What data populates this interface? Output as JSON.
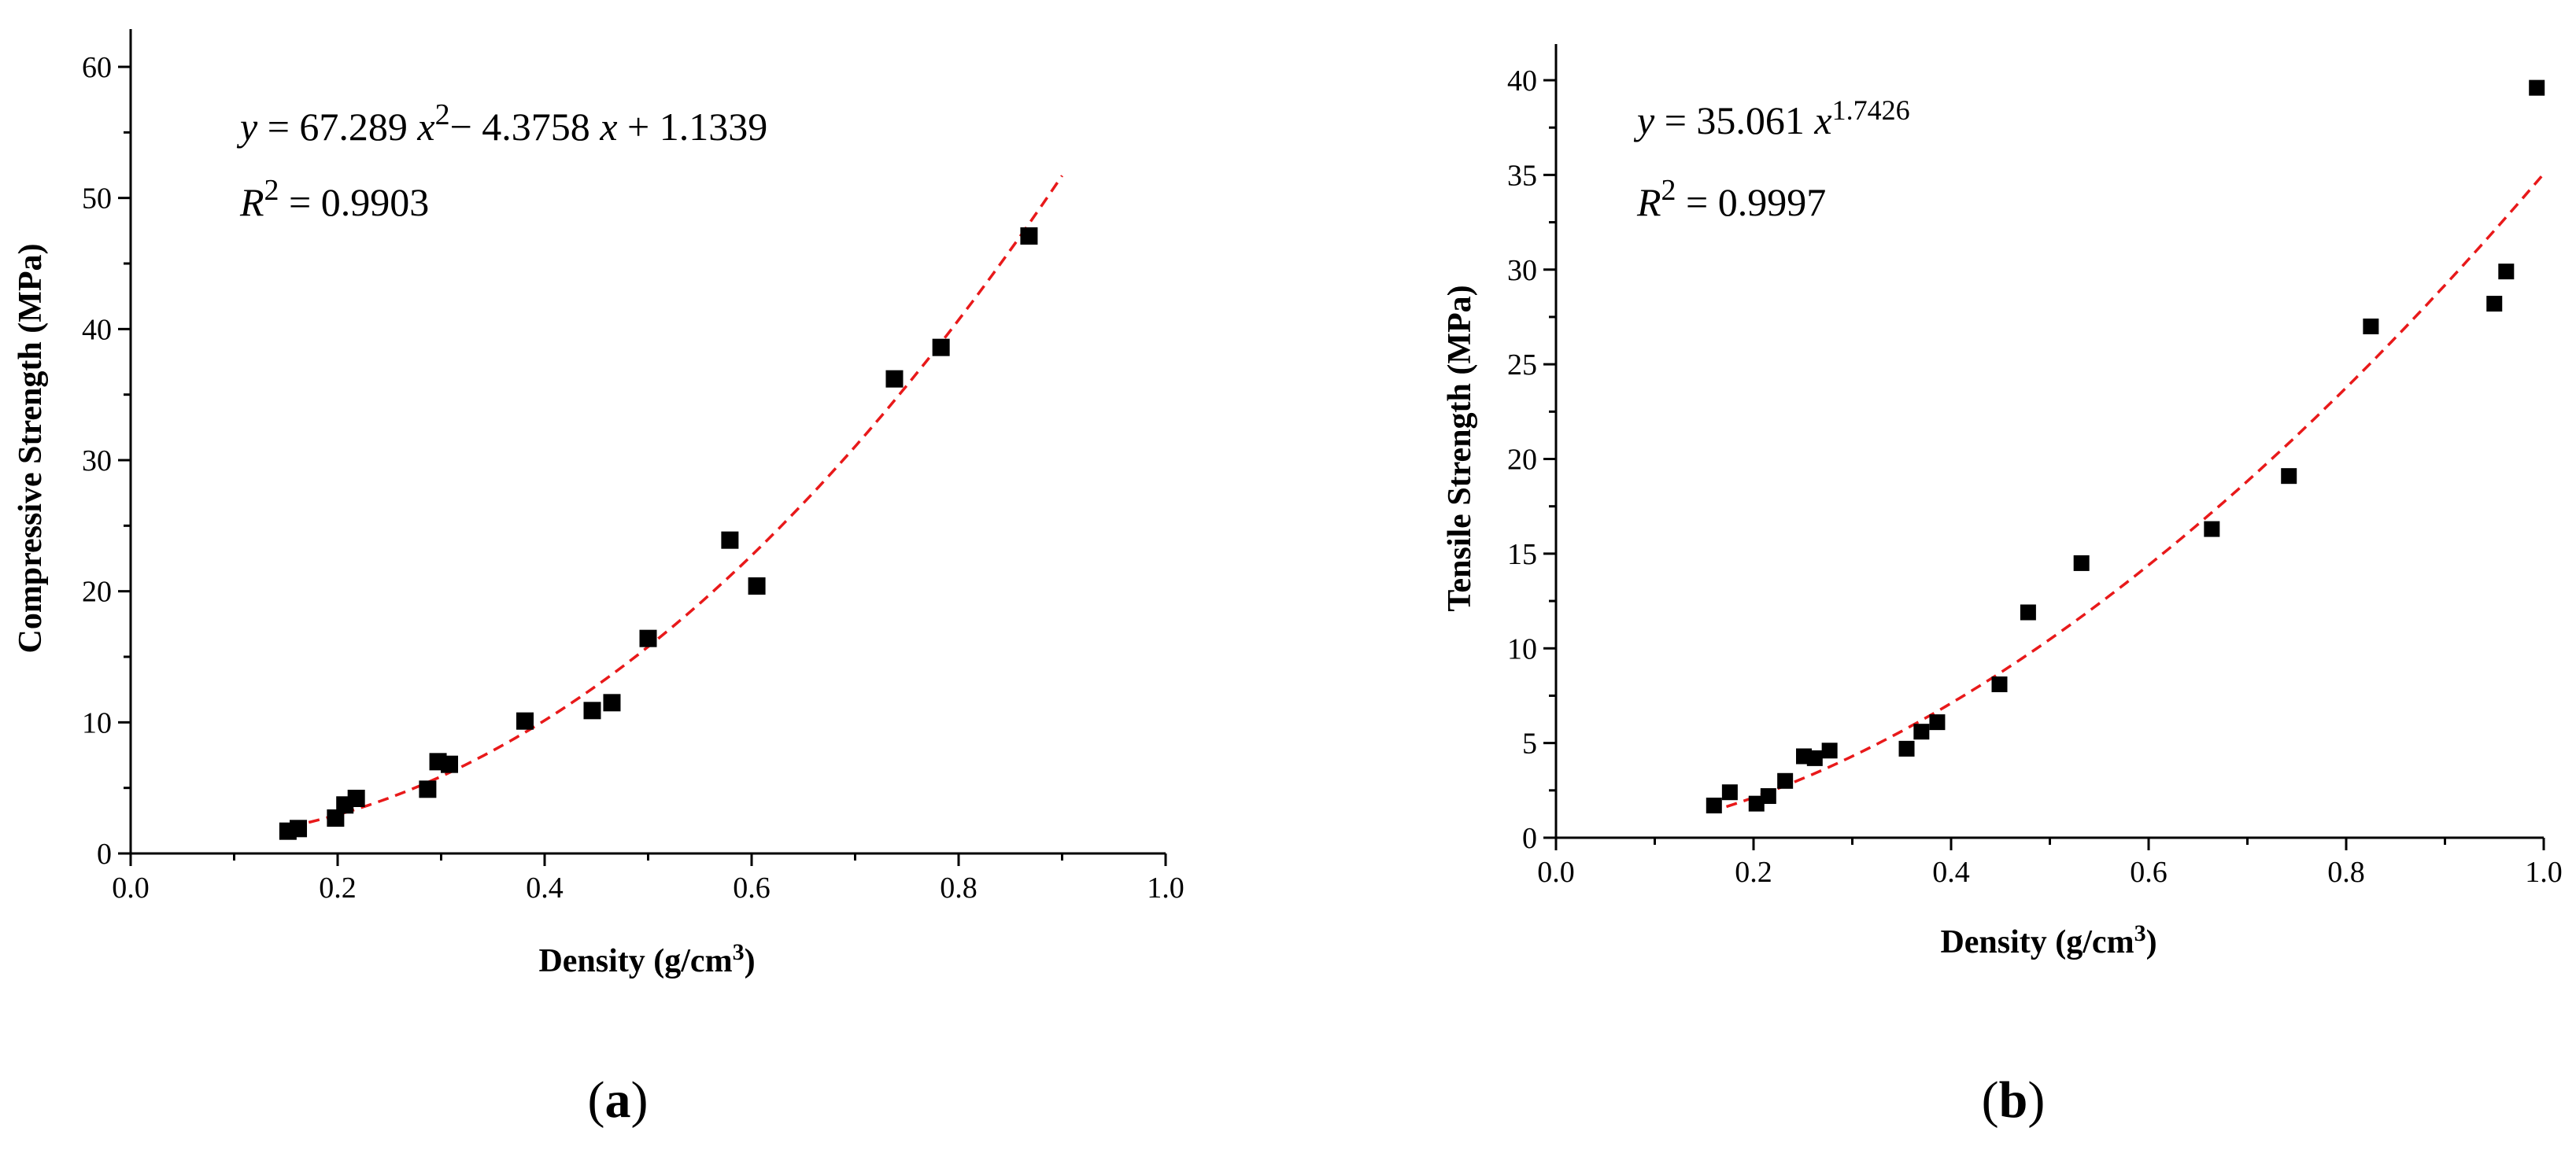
{
  "chart_data": [
    {
      "type": "scatter",
      "panel_label": {
        "open": "(",
        "letter": "a",
        "close": ")"
      },
      "xlabel": {
        "text": "Density (g/cm",
        "sup": "3",
        "suffix": ")"
      },
      "ylabel": "Compressive Strength (MPa)",
      "xlim": [
        0.0,
        1.0
      ],
      "ylim": [
        0,
        60
      ],
      "xticks": [
        0.0,
        0.2,
        0.4,
        0.6,
        0.8,
        1.0
      ],
      "xtick_labels": [
        "0.0",
        "0.2",
        "0.4",
        "0.6",
        "0.8",
        "1.0"
      ],
      "yticks": [
        0,
        10,
        20,
        30,
        40,
        50,
        60
      ],
      "ytick_labels": [
        "0",
        "10",
        "20",
        "30",
        "40",
        "50",
        "60"
      ],
      "equation": {
        "y": "y",
        "eq_a": " = 67.289 ",
        "x1": "x",
        "sup": "2",
        "eq_b": "− 4.3758 ",
        "x2": "x",
        "eq_c": " + 1.1339"
      },
      "r2": {
        "r": "R",
        "sup": "2",
        "value": " = 0.9903"
      },
      "fit": {
        "kind": "poly2",
        "a": 67.289,
        "b": -4.3758,
        "c": 1.1339,
        "x_range": [
          0.155,
          0.9
        ],
        "color": "#e8191a"
      },
      "marker_color": "#000000",
      "points": [
        [
          0.152,
          1.7
        ],
        [
          0.162,
          1.9
        ],
        [
          0.198,
          2.7
        ],
        [
          0.207,
          3.7
        ],
        [
          0.218,
          4.2
        ],
        [
          0.287,
          4.9
        ],
        [
          0.297,
          7.0
        ],
        [
          0.308,
          6.8
        ],
        [
          0.381,
          10.1
        ],
        [
          0.446,
          10.9
        ],
        [
          0.465,
          11.5
        ],
        [
          0.5,
          16.4
        ],
        [
          0.579,
          23.9
        ],
        [
          0.605,
          20.4
        ],
        [
          0.738,
          36.2
        ],
        [
          0.783,
          38.6
        ],
        [
          0.868,
          47.1
        ]
      ]
    },
    {
      "type": "scatter",
      "panel_label": {
        "open": "(",
        "letter": "b",
        "close": ")"
      },
      "xlabel": {
        "text": "Density (g/cm",
        "sup": "3",
        "suffix": ")"
      },
      "ylabel": "Tensile Strength (MPa)",
      "xlim": [
        0.0,
        1.0
      ],
      "ylim": [
        0,
        40
      ],
      "xticks": [
        0.0,
        0.2,
        0.4,
        0.6,
        0.8,
        1.0
      ],
      "xtick_labels": [
        "0.0",
        "0.2",
        "0.4",
        "0.6",
        "0.8",
        "1.0"
      ],
      "yticks": [
        0,
        5,
        10,
        15,
        20,
        25,
        30,
        35,
        40
      ],
      "ytick_labels": [
        "0",
        "5",
        "10",
        "15",
        "20",
        "25",
        "30",
        "35",
        "40"
      ],
      "equation": {
        "y": "y",
        "eq_a": " = 35.061 ",
        "x1": "x",
        "sup": "1.7426"
      },
      "r2": {
        "r": "R",
        "sup": "2",
        "value": " = 0.9997"
      },
      "fit": {
        "kind": "power",
        "a": 35.061,
        "b": 1.7426,
        "x_range": [
          0.155,
          1.0
        ],
        "color": "#e8191a"
      },
      "marker_color": "#000000",
      "points": [
        [
          0.16,
          1.7
        ],
        [
          0.176,
          2.4
        ],
        [
          0.203,
          1.8
        ],
        [
          0.215,
          2.2
        ],
        [
          0.232,
          3.0
        ],
        [
          0.251,
          4.3
        ],
        [
          0.262,
          4.2
        ],
        [
          0.277,
          4.6
        ],
        [
          0.355,
          4.7
        ],
        [
          0.37,
          5.6
        ],
        [
          0.386,
          6.1
        ],
        [
          0.449,
          8.1
        ],
        [
          0.478,
          11.9
        ],
        [
          0.532,
          14.5
        ],
        [
          0.664,
          16.3
        ],
        [
          0.742,
          19.1
        ],
        [
          0.825,
          27.0
        ],
        [
          0.95,
          28.2
        ],
        [
          0.962,
          29.9
        ],
        [
          0.993,
          39.6
        ]
      ]
    }
  ]
}
